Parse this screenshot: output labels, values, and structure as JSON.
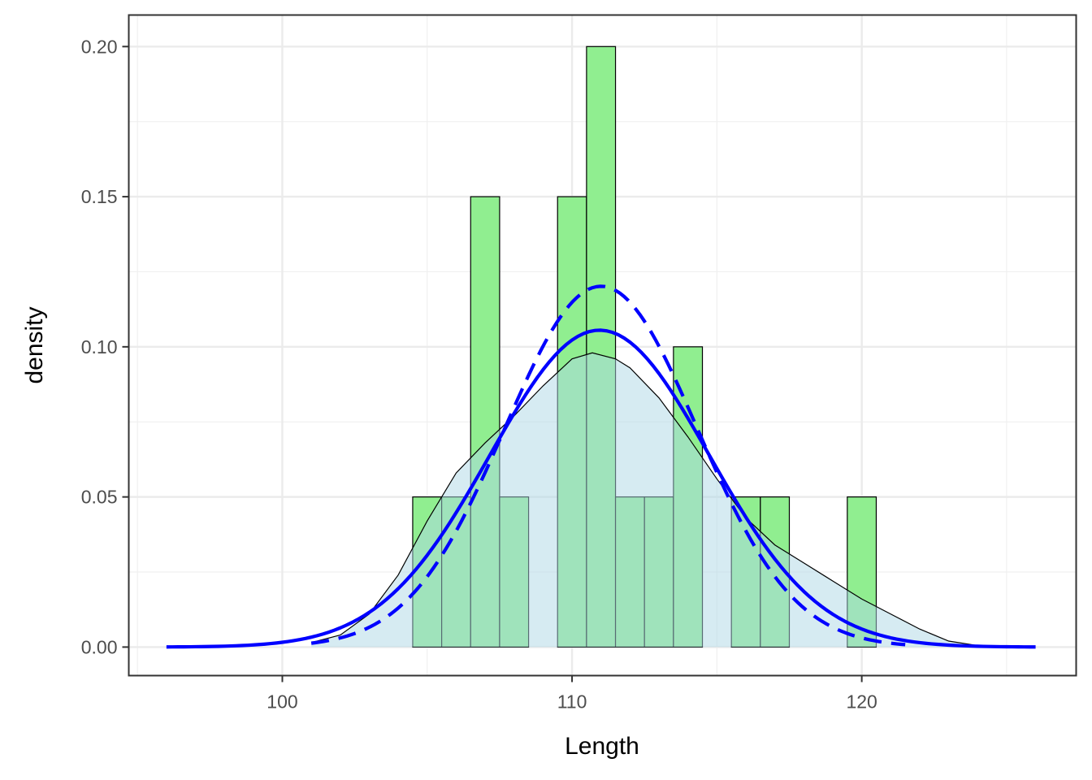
{
  "chart_data": {
    "type": "bar",
    "xlabel": "Length",
    "ylabel": "density",
    "xlim": [
      94.7,
      127.4
    ],
    "ylim": [
      -0.0095,
      0.2105
    ],
    "x_ticks": [
      100,
      110,
      120
    ],
    "x_tick_labels": [
      "100",
      "110",
      "120"
    ],
    "x_minor_ticks": [
      95,
      105,
      115,
      125
    ],
    "y_ticks": [
      0,
      0.05,
      0.1,
      0.15,
      0.2
    ],
    "y_tick_labels": [
      "0.00",
      "0.05",
      "0.10",
      "0.15",
      "0.20"
    ],
    "y_minor_ticks": [
      0.025,
      0.075,
      0.125,
      0.175
    ],
    "grid": true,
    "histogram": {
      "bin_width": 1,
      "fill": "#90EE90",
      "bins": [
        {
          "start": 104.5,
          "end": 105.5,
          "value": 0.05
        },
        {
          "start": 105.5,
          "end": 106.5,
          "value": 0.05
        },
        {
          "start": 106.5,
          "end": 107.5,
          "value": 0.15
        },
        {
          "start": 107.5,
          "end": 108.5,
          "value": 0.05
        },
        {
          "start": 109.5,
          "end": 110.5,
          "value": 0.15
        },
        {
          "start": 110.5,
          "end": 111.5,
          "value": 0.2
        },
        {
          "start": 111.5,
          "end": 112.5,
          "value": 0.05
        },
        {
          "start": 112.5,
          "end": 113.5,
          "value": 0.05
        },
        {
          "start": 113.5,
          "end": 114.5,
          "value": 0.1
        },
        {
          "start": 115.5,
          "end": 116.5,
          "value": 0.05
        },
        {
          "start": 116.5,
          "end": 117.5,
          "value": 0.05
        },
        {
          "start": 119.5,
          "end": 120.5,
          "value": 0.05
        }
      ]
    },
    "kernel_density": {
      "fill": "#ADD8E6",
      "fill_opacity": 0.5,
      "x": [
        101,
        102,
        103,
        104,
        105,
        106,
        107,
        108,
        109,
        110,
        110.7,
        111.5,
        112,
        113,
        114,
        115,
        116,
        117,
        118,
        119,
        120,
        121,
        122,
        123,
        124
      ],
      "y": [
        0.0015,
        0.004,
        0.011,
        0.024,
        0.042,
        0.058,
        0.068,
        0.077,
        0.087,
        0.096,
        0.098,
        0.096,
        0.093,
        0.083,
        0.07,
        0.056,
        0.043,
        0.034,
        0.028,
        0.022,
        0.016,
        0.011,
        0.006,
        0.002,
        0.0005
      ]
    },
    "normal_curves": [
      {
        "style": "solid",
        "color": "#0000FF",
        "mean": 110.95,
        "sd": 3.78,
        "range": [
          96,
          126
        ]
      },
      {
        "style": "dashed",
        "color": "#0000FF",
        "mean": 111.0,
        "sd": 3.32,
        "range": [
          101,
          121.5
        ]
      }
    ]
  }
}
